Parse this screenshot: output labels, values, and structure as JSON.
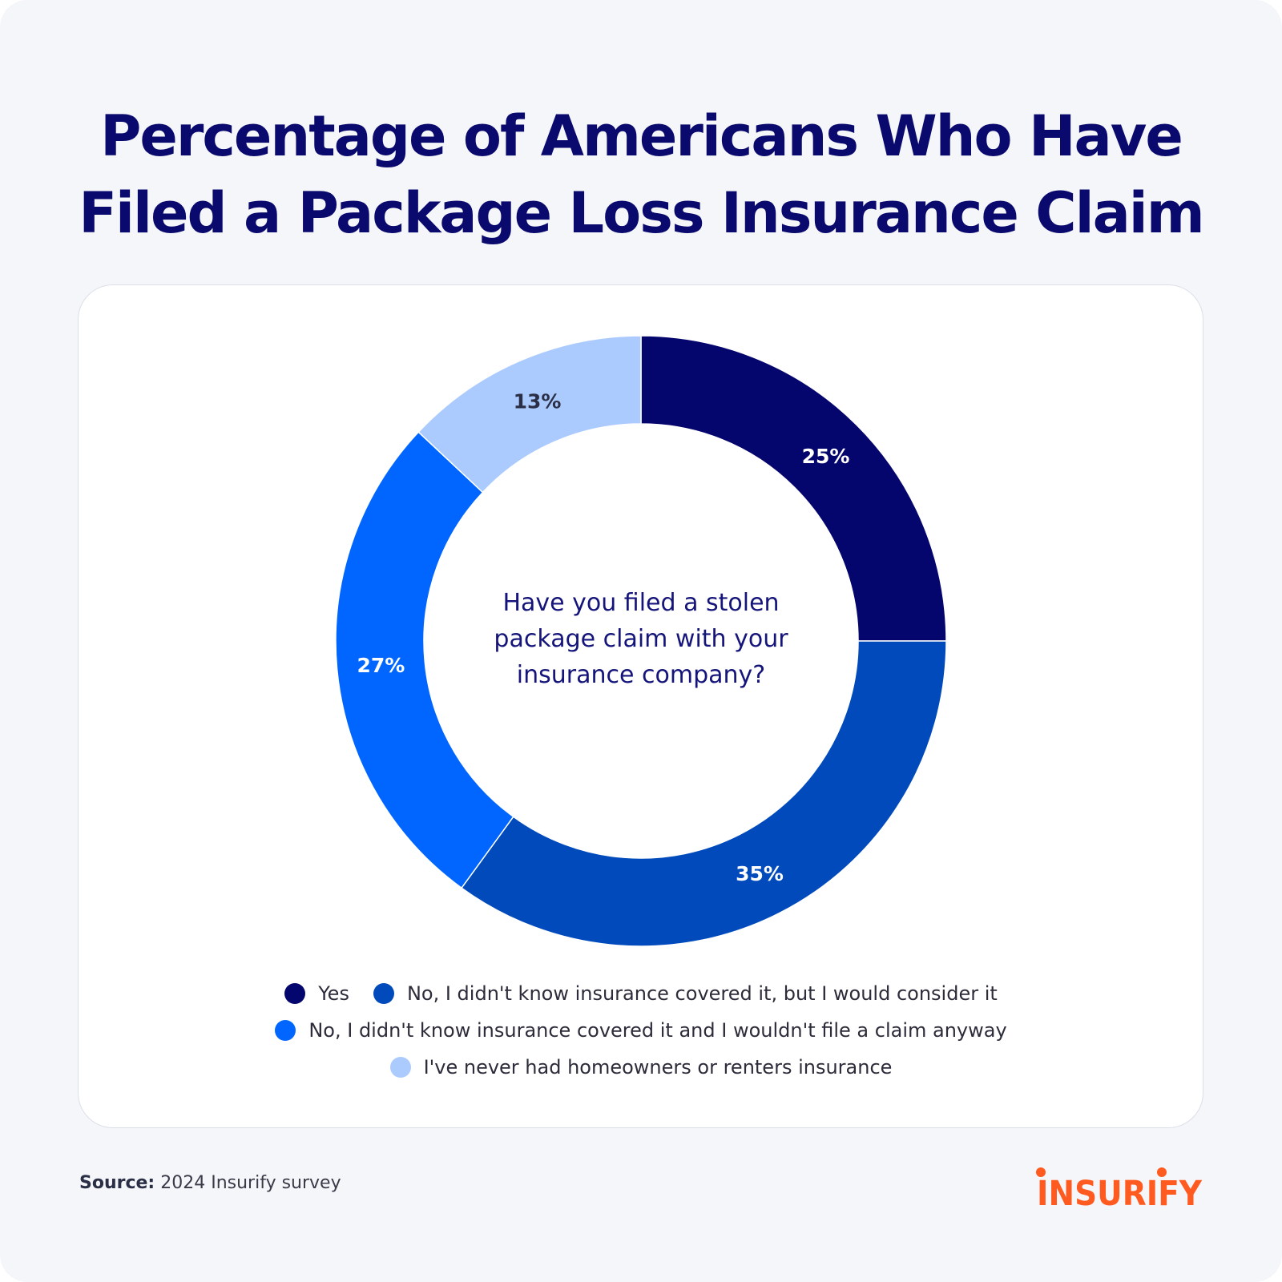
{
  "page": {
    "background": "#f5f6fa"
  },
  "title": {
    "line1": "Percentage of Americans Who Have",
    "line2": "Filed a Package Loss Insurance Claim",
    "color": "#0a0a6e"
  },
  "chart_data": {
    "type": "pie",
    "variant": "donut",
    "center_text": "Have you filed a stolen package claim with your insurance company?",
    "slices": [
      {
        "label": "Yes",
        "value": 25,
        "display": "25%",
        "color": "#05056e",
        "label_color": "#ffffff"
      },
      {
        "label": "No, I didn't know insurance covered it, but I would consider it",
        "value": 35,
        "display": "35%",
        "color": "#004abc",
        "label_color": "#ffffff"
      },
      {
        "label": "No, I didn't know insurance covered it and I wouldn't file a claim anyway",
        "value": 27,
        "display": "27%",
        "color": "#0066ff",
        "label_color": "#ffffff"
      },
      {
        "label": "I've never had homeowners or renters insurance",
        "value": 13,
        "display": "13%",
        "color": "#abcbff",
        "label_color": "#2b2f45"
      }
    ],
    "legend_placement": "bottom"
  },
  "source": {
    "label": "Source:",
    "text": "2024 Insurify survey"
  },
  "logo": {
    "text": "INSURIFY",
    "color": "#ff5a1f"
  }
}
